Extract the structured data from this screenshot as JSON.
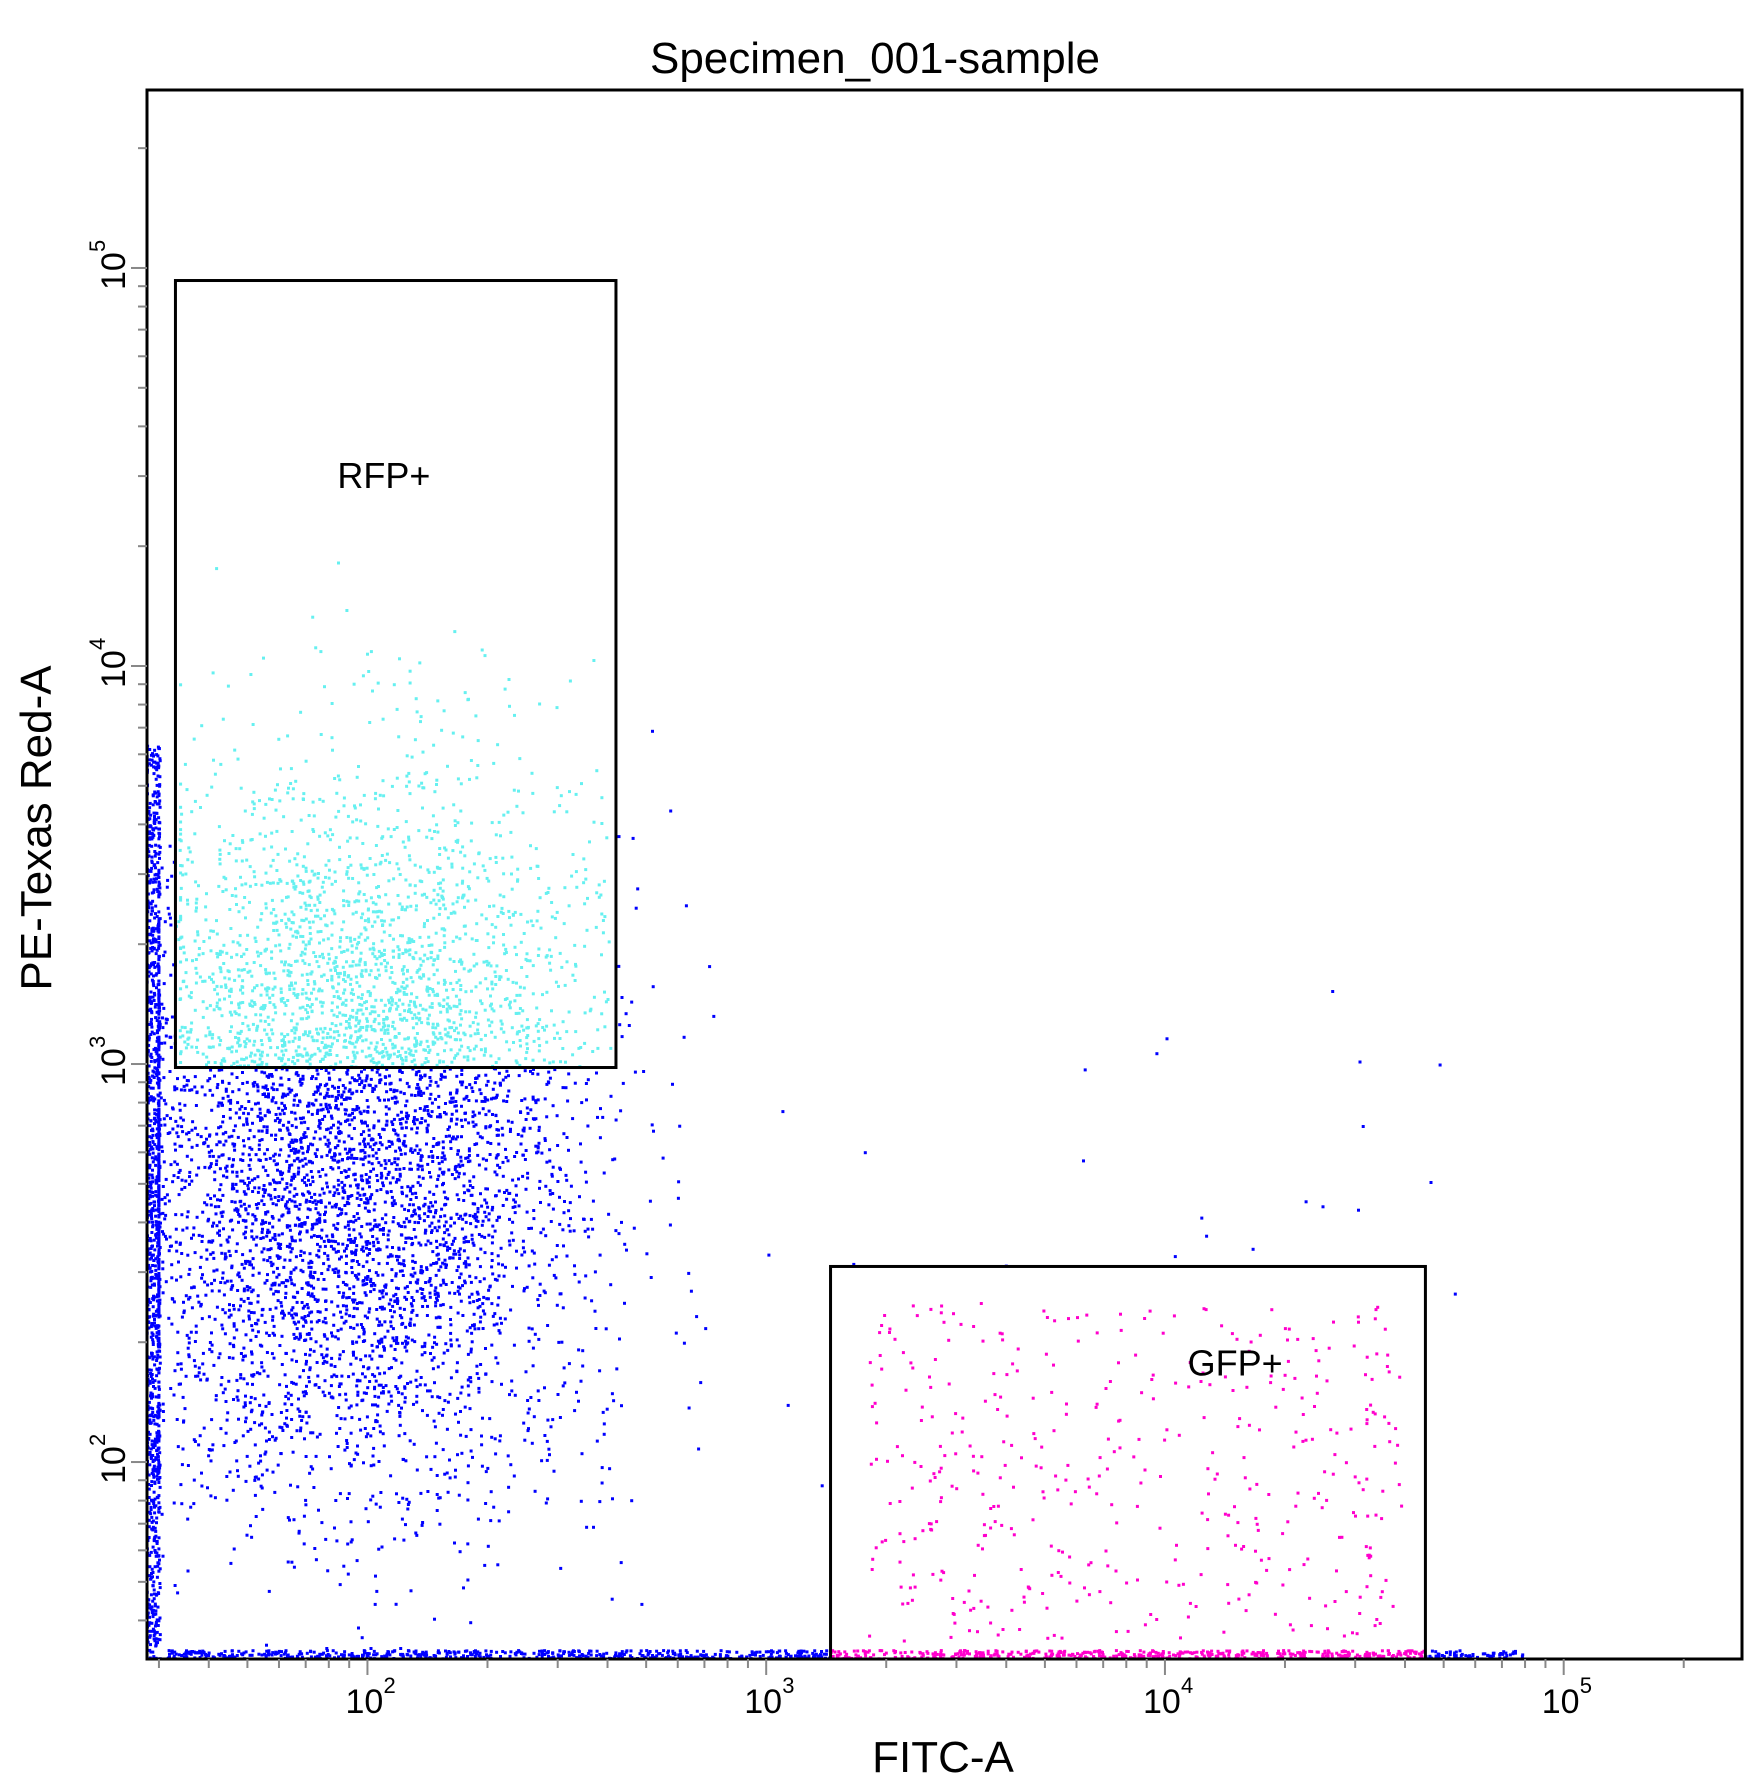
{
  "chart_data": {
    "type": "scatter",
    "title": "Specimen_001-sample",
    "xlabel": "FITC-A",
    "ylabel": "PE-Texas Red-A",
    "xscale": "log",
    "yscale": "log",
    "xlim": [
      28,
      280000
    ],
    "ylim": [
      32,
      280000
    ],
    "x_ticks": [
      {
        "base": "10",
        "exp": "2",
        "value": 100
      },
      {
        "base": "10",
        "exp": "3",
        "value": 1000
      },
      {
        "base": "10",
        "exp": "4",
        "value": 10000
      },
      {
        "base": "10",
        "exp": "5",
        "value": 100000
      }
    ],
    "y_ticks": [
      {
        "base": "10",
        "exp": "2",
        "value": 100
      },
      {
        "base": "10",
        "exp": "3",
        "value": 1000
      },
      {
        "base": "10",
        "exp": "4",
        "value": 10000
      },
      {
        "base": "10",
        "exp": "5",
        "value": 100000
      }
    ],
    "grid": false,
    "gates": [
      {
        "name": "RFP+",
        "x": [
          33,
          420
        ],
        "y": [
          980,
          93000
        ],
        "label_at": [
          110,
          28000
        ]
      },
      {
        "name": "GFP+",
        "x": [
          1450,
          45000
        ],
        "y": [
          32,
          310
        ],
        "label_at": [
          15000,
          165
        ]
      }
    ],
    "populations": [
      {
        "name": "ungated",
        "color": "#0000ff"
      },
      {
        "name": "RFP+",
        "color": "#66f0f0"
      },
      {
        "name": "GFP+",
        "color": "#ff00cc"
      }
    ]
  }
}
